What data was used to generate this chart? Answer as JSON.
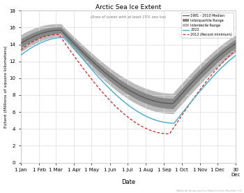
{
  "title": "Arctic Sea Ice Extent",
  "subtitle": "(Area of ocean with at least 15% sea ice)",
  "xlabel": "Date",
  "ylabel": "Extent (Millions of square kilometers)",
  "ylim": [
    0,
    18
  ],
  "yticks": [
    0,
    2,
    4,
    6,
    8,
    10,
    12,
    14,
    16,
    18
  ],
  "xtick_labels": [
    "1 Jan",
    "1 Feb",
    "1 Mar",
    "1 Apr",
    "1 May",
    "1 Jun",
    "1 Jul",
    "1 Aug",
    "1 Sep",
    "1 Oct",
    "1 Nov",
    "1 Dec",
    "30\nDec"
  ],
  "month_starts": [
    0,
    31,
    59,
    90,
    120,
    151,
    181,
    212,
    243,
    273,
    304,
    334,
    364
  ],
  "median_color": "#555555",
  "iqr_color": "#888888",
  "idr_color": "#bbbbbb",
  "line_2022_color": "#44aacc",
  "line_2012_color": "#cc2222",
  "background_color": "#ffffff",
  "grid_color": "#dddddd",
  "legend_labels": [
    "1981 - 2010 Median",
    "Interquartile Range",
    "Interdecile Range",
    "2022",
    "2012 (Record minimum)"
  ],
  "credit_text": "National Snow and Ice Data Center, Boulder, CO"
}
